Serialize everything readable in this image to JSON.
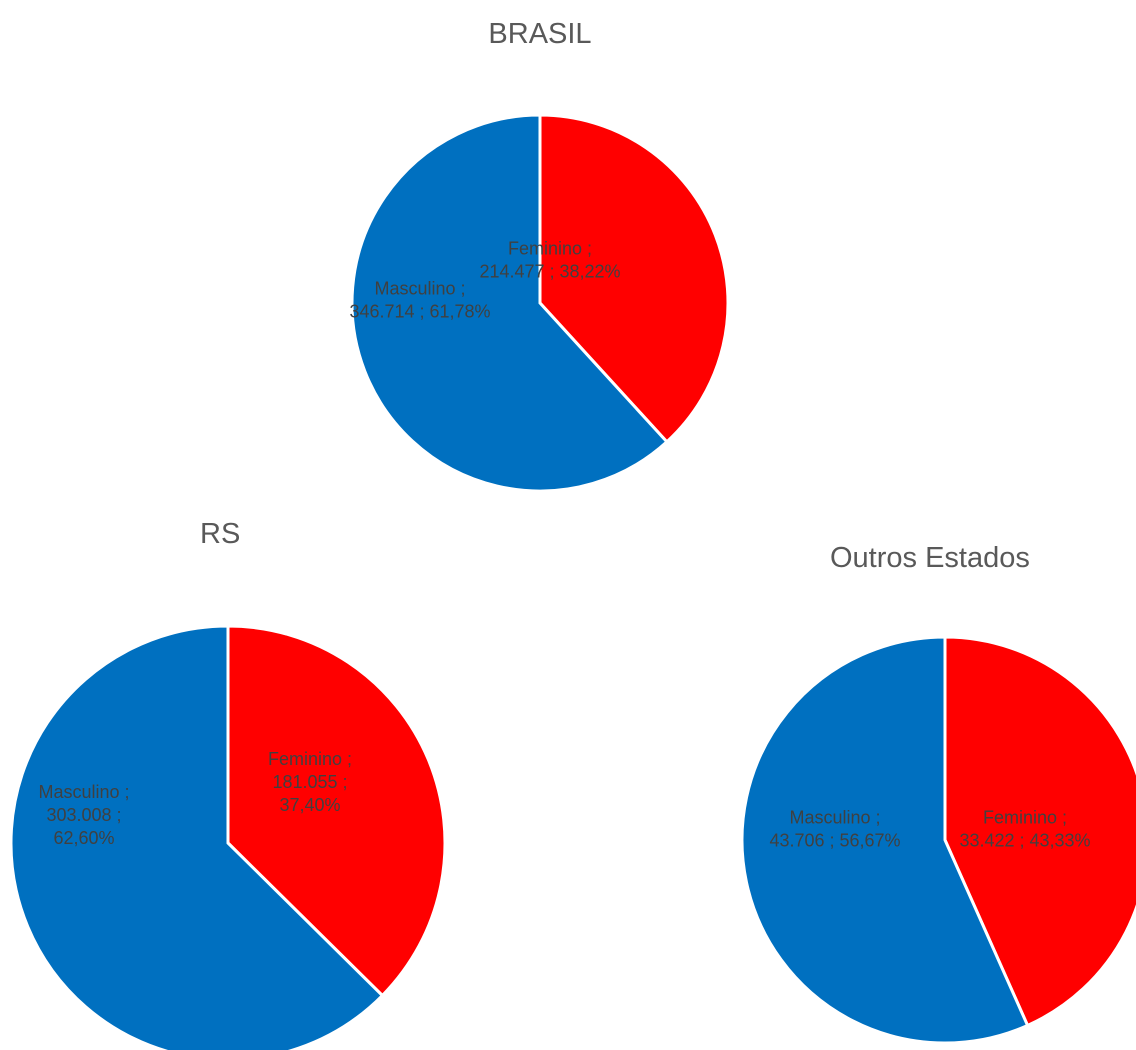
{
  "colors": {
    "masculino": "#0070C0",
    "feminino": "#FF0000"
  },
  "chart_data": [
    {
      "type": "pie",
      "title": "BRASIL",
      "slices": [
        {
          "name": "Feminino",
          "value": 214477,
          "percent": 38.22,
          "color": "#FF0000",
          "label_lines": [
            "Feminino ;",
            "214.477 ; 38,22%"
          ]
        },
        {
          "name": "Masculino",
          "value": 346714,
          "percent": 61.78,
          "color": "#0070C0",
          "label_lines": [
            "Masculino ;",
            "346.714 ; 61,78%"
          ]
        }
      ]
    },
    {
      "type": "pie",
      "title": "RS",
      "slices": [
        {
          "name": "Feminino",
          "value": 181055,
          "percent": 37.4,
          "color": "#FF0000",
          "label_lines": [
            "Feminino ;",
            "181.055 ;",
            "37,40%"
          ]
        },
        {
          "name": "Masculino",
          "value": 303008,
          "percent": 62.6,
          "color": "#0070C0",
          "label_lines": [
            "Masculino ;",
            "303.008 ;",
            "62,60%"
          ]
        }
      ]
    },
    {
      "type": "pie",
      "title": "Outros Estados",
      "slices": [
        {
          "name": "Feminino",
          "value": 33422,
          "percent": 43.33,
          "color": "#FF0000",
          "label_lines": [
            "Feminino ;",
            "33.422 ; 43,33%"
          ]
        },
        {
          "name": "Masculino",
          "value": 43706,
          "percent": 56.67,
          "color": "#0070C0",
          "label_lines": [
            "Masculino ;",
            "43.706 ; 56,67%"
          ]
        }
      ]
    }
  ]
}
